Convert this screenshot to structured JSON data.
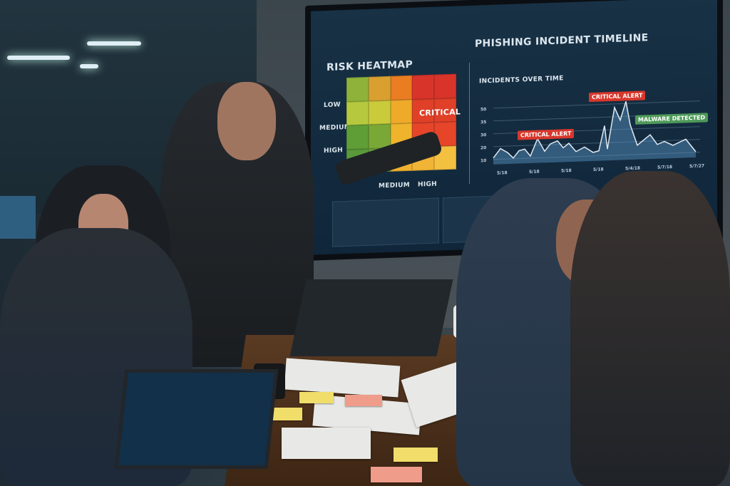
{
  "screen": {
    "heatmap": {
      "title": "RISK HEATMAP",
      "row_labels": [
        "LOW",
        "MEDIUM",
        "HIGH"
      ],
      "col_labels": [
        "MEDIUM",
        "HIGH"
      ],
      "critical_label": "CRITICAL",
      "colors": [
        "#8fb33a",
        "#d9a030",
        "#ea7c22",
        "#d9342a",
        "#d9342a",
        "#b6c93e",
        "#c9cb3a",
        "#efaa2a",
        "#e04028",
        "#e04028",
        "#5f9e36",
        "#7aa836",
        "#efb42c",
        "#e6452a",
        "#e6452a",
        "#5a9a3a",
        "#6aa03a",
        "#f0b030",
        "#f2b436",
        "#f4c040"
      ]
    },
    "timeline": {
      "title": "PHISHING INCIDENT TIMELINE",
      "subtitle": "INCIDENTS OVER TIME",
      "y_ticks": [
        "50",
        "35",
        "30",
        "20",
        "10"
      ],
      "x_ticks": [
        "5/18",
        "5/18",
        "5/18",
        "5/18",
        "5/4/18",
        "5/7/18",
        "5/7/27"
      ],
      "annotations": [
        {
          "label": "CRITICAL ALERT",
          "color": "#d8372c"
        },
        {
          "label": "CRITICAL ALERT",
          "color": "#d8372c"
        },
        {
          "label": "MALWARE DETECTED",
          "color": "#4f9a5a"
        }
      ]
    }
  }
}
